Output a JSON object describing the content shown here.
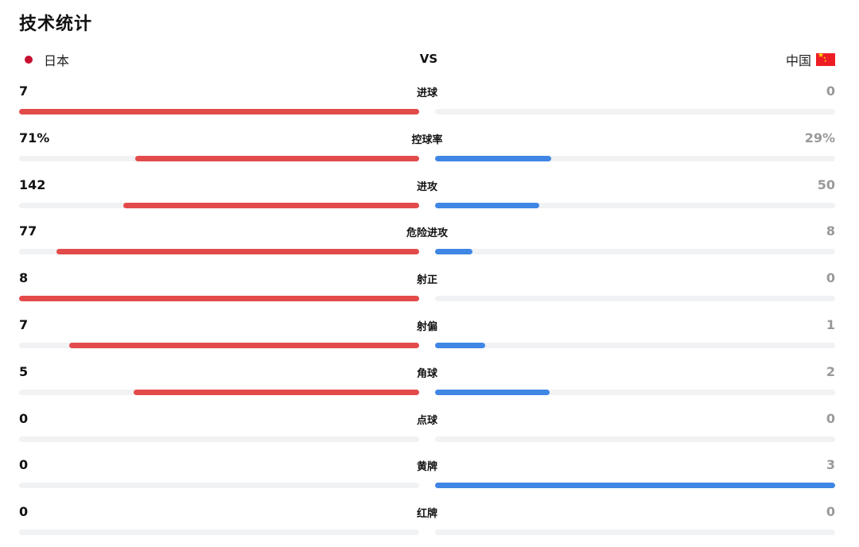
{
  "title": "技术统计",
  "teams": {
    "home": {
      "name": "日本",
      "color": "#c8102e"
    },
    "vs": "VS",
    "away": {
      "name": "中国",
      "color": "#ee1c25"
    }
  },
  "colors": {
    "home_bar": "#e34b4b",
    "away_bar": "#3f86e5",
    "track": "#f1f2f4",
    "away_text": "#999999"
  },
  "stats": [
    {
      "label": "进球",
      "home": "7",
      "away": "0",
      "home_share": 1.0,
      "away_share": 0.0
    },
    {
      "label": "控球率",
      "home": "71%",
      "away": "29%",
      "home_share": 0.71,
      "away_share": 0.29
    },
    {
      "label": "进攻",
      "home": "142",
      "away": "50",
      "home_share": 0.74,
      "away_share": 0.26
    },
    {
      "label": "危险进攻",
      "home": "77",
      "away": "8",
      "home_share": 0.906,
      "away_share": 0.094
    },
    {
      "label": "射正",
      "home": "8",
      "away": "0",
      "home_share": 1.0,
      "away_share": 0.0
    },
    {
      "label": "射偏",
      "home": "7",
      "away": "1",
      "home_share": 0.875,
      "away_share": 0.125
    },
    {
      "label": "角球",
      "home": "5",
      "away": "2",
      "home_share": 0.714,
      "away_share": 0.286
    },
    {
      "label": "点球",
      "home": "0",
      "away": "0",
      "home_share": 0.0,
      "away_share": 0.0
    },
    {
      "label": "黄牌",
      "home": "0",
      "away": "3",
      "home_share": 0.0,
      "away_share": 1.0
    },
    {
      "label": "红牌",
      "home": "0",
      "away": "0",
      "home_share": 0.0,
      "away_share": 0.0
    }
  ]
}
